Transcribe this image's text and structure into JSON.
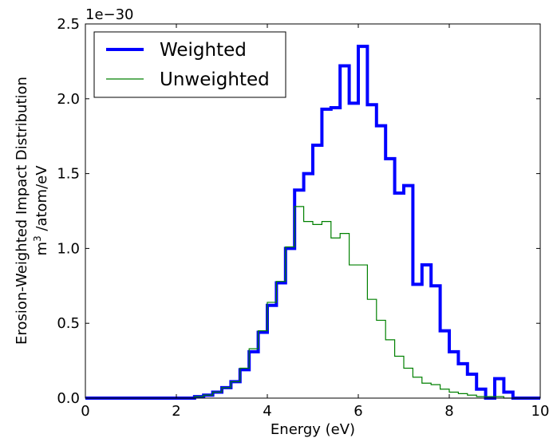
{
  "chart_data": {
    "type": "line",
    "xlabel": "Energy (eV)",
    "ylabel_line1": "Erosion-Weighted Impact Distribution",
    "ylabel_line2_base": "m",
    "ylabel_line2_sup": "3",
    "ylabel_line2_rest": " /atom/eV",
    "y_offset_text": "1e−30",
    "xlim": [
      0,
      10
    ],
    "ylim": [
      0,
      2.5
    ],
    "xticks": [
      0,
      2,
      4,
      6,
      8,
      10
    ],
    "xtick_labels": [
      "0",
      "2",
      "4",
      "6",
      "8",
      "10"
    ],
    "yticks": [
      0,
      0.5,
      1.0,
      1.5,
      2.0,
      2.5
    ],
    "ytick_labels": [
      "0.0",
      "0.5",
      "1.0",
      "1.5",
      "2.0",
      "2.5"
    ],
    "legend_position": "top-left",
    "bin_edges": [
      0.0,
      0.2,
      0.4,
      0.6,
      0.8,
      1.0,
      1.2,
      1.4,
      1.6,
      1.8,
      2.0,
      2.2,
      2.4,
      2.6,
      2.8,
      3.0,
      3.2,
      3.4,
      3.6,
      3.8,
      4.0,
      4.2,
      4.4,
      4.6,
      4.8,
      5.0,
      5.2,
      5.4,
      5.6,
      5.8,
      6.0,
      6.2,
      6.4,
      6.6,
      6.8,
      7.0,
      7.2,
      7.4,
      7.6,
      7.8,
      8.0,
      8.2,
      8.4,
      8.6,
      8.8,
      9.0,
      9.2,
      9.4,
      9.6,
      9.8,
      10.0
    ],
    "series": [
      {
        "name": "Weighted",
        "color": "#0000ff",
        "linewidth": 4,
        "values": [
          0,
          0,
          0,
          0,
          0,
          0,
          0,
          0,
          0,
          0,
          0,
          0,
          0.01,
          0.02,
          0.04,
          0.07,
          0.11,
          0.19,
          0.31,
          0.44,
          0.62,
          0.77,
          1.0,
          1.39,
          1.5,
          1.69,
          1.93,
          1.94,
          2.22,
          1.97,
          2.35,
          1.96,
          1.82,
          1.6,
          1.37,
          1.42,
          0.76,
          0.89,
          0.75,
          0.45,
          0.31,
          0.23,
          0.16,
          0.06,
          0,
          0.13,
          0.04,
          0,
          0,
          0
        ]
      },
      {
        "name": "Unweighted",
        "color": "#008000",
        "linewidth": 1.2,
        "values": [
          0,
          0,
          0,
          0,
          0,
          0,
          0,
          0,
          0,
          0,
          0,
          0,
          0.01,
          0.02,
          0.04,
          0.07,
          0.11,
          0.2,
          0.33,
          0.45,
          0.64,
          0.78,
          1.01,
          1.28,
          1.18,
          1.16,
          1.18,
          1.07,
          1.1,
          0.89,
          0.89,
          0.66,
          0.52,
          0.39,
          0.28,
          0.2,
          0.14,
          0.1,
          0.09,
          0.06,
          0.04,
          0.03,
          0.02,
          0.01,
          0.01,
          0.01,
          0,
          0,
          0,
          0
        ]
      }
    ]
  }
}
